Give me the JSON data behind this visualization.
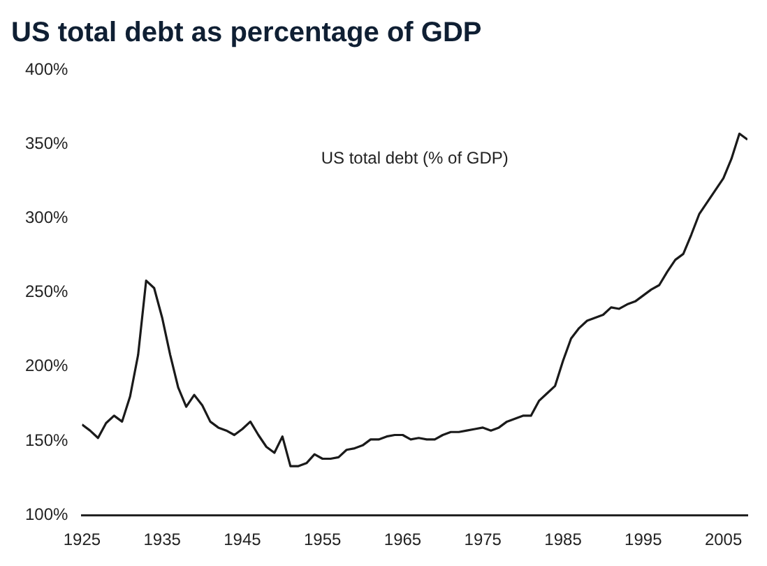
{
  "chart_data": {
    "type": "line",
    "title": "US total debt as percentage of GDP",
    "annotations": [
      "US total debt (% of GDP)"
    ],
    "x": [
      1925,
      1926,
      1927,
      1928,
      1929,
      1930,
      1931,
      1932,
      1933,
      1934,
      1935,
      1936,
      1937,
      1938,
      1939,
      1940,
      1941,
      1942,
      1943,
      1944,
      1945,
      1946,
      1947,
      1948,
      1949,
      1950,
      1951,
      1952,
      1953,
      1954,
      1955,
      1956,
      1957,
      1958,
      1959,
      1960,
      1961,
      1962,
      1963,
      1964,
      1965,
      1966,
      1967,
      1968,
      1969,
      1970,
      1971,
      1972,
      1973,
      1974,
      1975,
      1976,
      1977,
      1978,
      1979,
      1980,
      1981,
      1982,
      1983,
      1984,
      1985,
      1986,
      1987,
      1988,
      1989,
      1990,
      1991,
      1992,
      1993,
      1994,
      1995,
      1996,
      1997,
      1998,
      1999,
      2000,
      2001,
      2002,
      2003,
      2004,
      2005,
      2006,
      2007,
      2008
    ],
    "series": [
      {
        "color": "#1a1a1a",
        "values": [
          161,
          157,
          152,
          162,
          167,
          163,
          180,
          208,
          258,
          253,
          233,
          208,
          186,
          173,
          181,
          174,
          163,
          159,
          157,
          154,
          158,
          163,
          154,
          146,
          142,
          153,
          133,
          133,
          135,
          141,
          138,
          138,
          139,
          144,
          145,
          147,
          151,
          151,
          153,
          154,
          154,
          151,
          152,
          151,
          151,
          154,
          156,
          156,
          157,
          158,
          159,
          157,
          159,
          163,
          165,
          167,
          167,
          177,
          182,
          187,
          204,
          219,
          226,
          231,
          233,
          235,
          240,
          239,
          242,
          244,
          248,
          252,
          255,
          264,
          272,
          276,
          289,
          303,
          311,
          319,
          327,
          340,
          357,
          353
        ]
      }
    ],
    "xlim": [
      1925,
      2008
    ],
    "xticks": [
      1925,
      1935,
      1945,
      1955,
      1965,
      1975,
      1985,
      1995,
      2005
    ],
    "ylim": [
      100,
      400
    ],
    "yticks": [
      {
        "value": 100,
        "label": "100%"
      },
      {
        "value": 150,
        "label": "150%"
      },
      {
        "value": 200,
        "label": "200%"
      },
      {
        "value": 250,
        "label": "250%"
      },
      {
        "value": 300,
        "label": "300%"
      },
      {
        "value": 350,
        "label": "350%"
      },
      {
        "value": 400,
        "label": "400%"
      }
    ],
    "grid": false,
    "legend": false,
    "marker": "none",
    "line_style": "solid"
  }
}
